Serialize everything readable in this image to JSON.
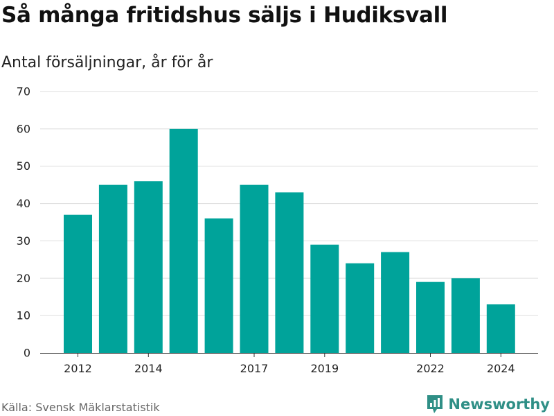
{
  "title": "Så många fritidshus säljs i Hudiksvall",
  "subtitle": "Antal försäljningar, år för år",
  "source": "Källa: Svensk Mäklarstatistik",
  "brand": {
    "name": "Newsworthy",
    "icon": "bar-chart-logo-icon",
    "color": "#2f8f86"
  },
  "chart_data": {
    "type": "bar",
    "title": "Så många fritidshus säljs i Hudiksvall",
    "subtitle": "Antal försäljningar, år för år",
    "x": [
      2012,
      2013,
      2014,
      2015,
      2016,
      2017,
      2018,
      2019,
      2020,
      2021,
      2022,
      2023,
      2024
    ],
    "values": [
      37,
      45,
      46,
      60,
      36,
      45,
      43,
      29,
      24,
      27,
      19,
      20,
      13
    ],
    "x_tick_labels": [
      2012,
      2014,
      2017,
      2019,
      2022,
      2024
    ],
    "y_ticks": [
      0,
      10,
      20,
      30,
      40,
      50,
      60,
      70
    ],
    "ylim": [
      0,
      70
    ],
    "bar_color": "#00a39a",
    "grid": true,
    "legend": "none"
  }
}
